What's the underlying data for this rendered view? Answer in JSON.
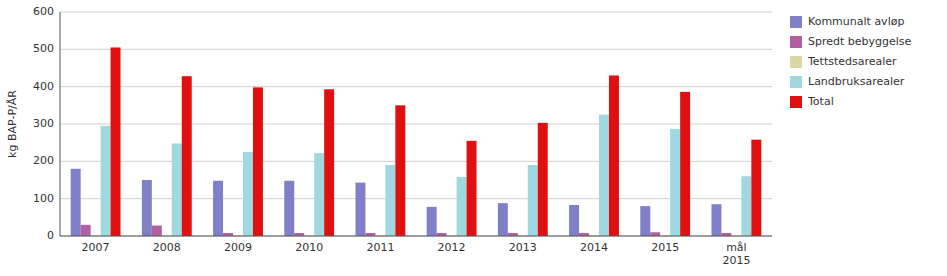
{
  "chart_data": {
    "type": "bar",
    "ylabel": "kg BAP-P/ÅR",
    "categories": [
      "2007",
      "2008",
      "2009",
      "2010",
      "2011",
      "2012",
      "2013",
      "2014",
      "2015",
      "mål\n2015"
    ],
    "series": [
      {
        "name": "Kommunalt avløp",
        "color": "#8080c8",
        "values": [
          180,
          150,
          148,
          148,
          143,
          78,
          88,
          83,
          80,
          85
        ]
      },
      {
        "name": "Spredt bebyggelse",
        "color": "#b060a0",
        "values": [
          30,
          28,
          8,
          8,
          8,
          8,
          8,
          8,
          10,
          8
        ]
      },
      {
        "name": "Tettstedsarealer",
        "color": "#d8d8a0",
        "values": [
          2,
          2,
          2,
          2,
          2,
          2,
          2,
          2,
          2,
          2
        ]
      },
      {
        "name": "Landbruksarealer",
        "color": "#a0d8e0",
        "values": [
          295,
          248,
          225,
          222,
          190,
          158,
          190,
          325,
          287,
          160
        ]
      },
      {
        "name": "Total",
        "color": "#e01010",
        "values": [
          505,
          428,
          398,
          393,
          350,
          255,
          303,
          430,
          386,
          258
        ]
      }
    ],
    "ylim": [
      0,
      600
    ],
    "yticks": [
      0,
      100,
      200,
      300,
      400,
      500,
      600
    ],
    "grid": true,
    "legend": "right"
  }
}
